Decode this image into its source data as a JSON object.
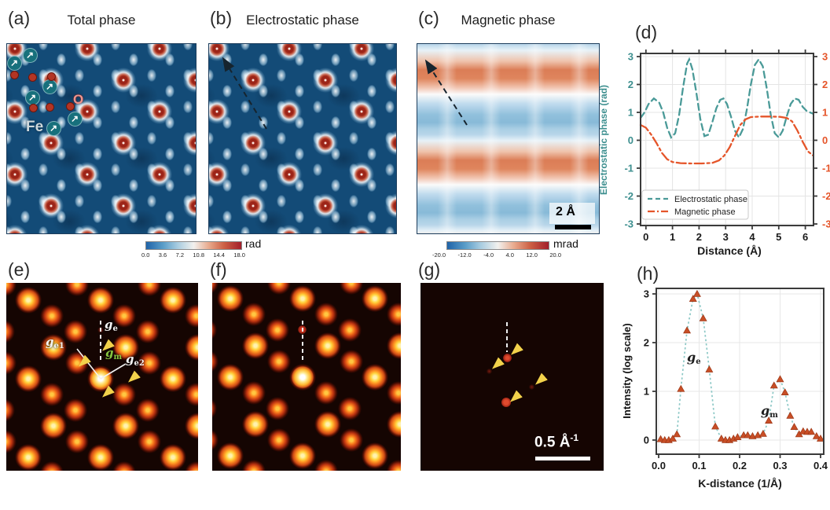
{
  "figure": {
    "panels": {
      "a": {
        "label": "(a)",
        "title": "Total phase",
        "atom_labels": {
          "fe": "Fe",
          "o": "O"
        },
        "fe_atoms": [
          [
            29,
            14
          ],
          [
            9,
            24
          ],
          [
            54,
            54
          ],
          [
            32,
            68
          ],
          [
            86,
            95
          ],
          [
            59,
            107
          ]
        ],
        "o_atoms": [
          [
            9,
            39
          ],
          [
            32,
            42
          ],
          [
            56,
            41
          ],
          [
            33,
            81
          ],
          [
            54,
            80
          ],
          [
            80,
            79
          ]
        ]
      },
      "b": {
        "label": "(b)",
        "title": "Electrostatic phase"
      },
      "c": {
        "label": "(c)",
        "title": "Magnetic phase",
        "scalebar": "2 Å"
      },
      "d": {
        "label": "(d)"
      },
      "e": {
        "label": "(e)",
        "annotations": {
          "ge1": {
            "main": "g",
            "sub": "e1"
          },
          "ge": {
            "main": "g",
            "sub": "e"
          },
          "gm": {
            "main": "g",
            "sub": "m"
          },
          "ge2": {
            "main": "g",
            "sub": "e2"
          }
        }
      },
      "f": {
        "label": "(f)"
      },
      "g": {
        "label": "(g)",
        "scalebar": {
          "main": "0.5 Å",
          "sup": "-1"
        }
      },
      "h": {
        "label": "(h)",
        "annotations": {
          "ge": {
            "main": "g",
            "sub": "e"
          },
          "gm": {
            "main": "g",
            "sub": "m"
          }
        }
      }
    },
    "colorbars": {
      "rad": {
        "unit": "rad",
        "ticks": [
          "0.0",
          "3.6",
          "7.2",
          "10.8",
          "14.4",
          "18.0"
        ]
      },
      "mrad": {
        "unit": "mrad",
        "ticks": [
          "-20.0",
          "-12.0",
          "-4.0",
          "4.0",
          "12.0",
          "20.0"
        ]
      }
    }
  },
  "chart_data": [
    {
      "type": "line",
      "panel": "d",
      "xlabel": "Distance (Å)",
      "ylabel": "Electrostatic phase (rad)",
      "xlim": [
        -0.2,
        6.3
      ],
      "ylim": [
        -3.1,
        3.1
      ],
      "xticks": [
        0,
        1,
        2,
        3,
        4,
        5,
        6
      ],
      "xtick_labels": [
        "0",
        "1",
        "2",
        "3",
        "4",
        "5",
        "6"
      ],
      "yticks": [
        -3,
        -2,
        -1,
        0,
        1,
        2,
        3
      ],
      "ytick_labels": [
        "-3",
        "-2",
        "-1",
        "0",
        "1",
        "2",
        "3"
      ],
      "right_ytick_labels": [
        "-3",
        "-2",
        "-1",
        "0",
        "1",
        "2",
        "3"
      ],
      "grid": true,
      "legend_position": "lower left",
      "legend": [
        "Electrostatic phase",
        "Magnetic phase"
      ],
      "series": [
        {
          "name": "Electrostatic phase",
          "color": "#4a9a98",
          "style": "dashed",
          "points": [
            [
              -0.2,
              0.8
            ],
            [
              -0.05,
              1.0
            ],
            [
              0.1,
              1.3
            ],
            [
              0.3,
              1.5
            ],
            [
              0.5,
              1.35
            ],
            [
              0.65,
              1.0
            ],
            [
              0.8,
              0.45
            ],
            [
              0.95,
              0.1
            ],
            [
              1.1,
              0.25
            ],
            [
              1.25,
              0.9
            ],
            [
              1.4,
              1.9
            ],
            [
              1.55,
              2.75
            ],
            [
              1.63,
              2.9
            ],
            [
              1.75,
              2.55
            ],
            [
              1.9,
              1.7
            ],
            [
              2.05,
              0.75
            ],
            [
              2.2,
              0.15
            ],
            [
              2.35,
              0.2
            ],
            [
              2.5,
              0.65
            ],
            [
              2.65,
              1.15
            ],
            [
              2.8,
              1.45
            ],
            [
              2.92,
              1.5
            ],
            [
              3.05,
              1.3
            ],
            [
              3.2,
              0.85
            ],
            [
              3.35,
              0.35
            ],
            [
              3.5,
              0.1
            ],
            [
              3.65,
              0.4
            ],
            [
              3.8,
              1.1
            ],
            [
              3.95,
              2.0
            ],
            [
              4.1,
              2.7
            ],
            [
              4.25,
              2.9
            ],
            [
              4.4,
              2.65
            ],
            [
              4.55,
              1.85
            ],
            [
              4.7,
              0.9
            ],
            [
              4.85,
              0.25
            ],
            [
              5.0,
              0.1
            ],
            [
              5.15,
              0.35
            ],
            [
              5.3,
              0.85
            ],
            [
              5.45,
              1.3
            ],
            [
              5.6,
              1.5
            ],
            [
              5.75,
              1.45
            ],
            [
              5.9,
              1.2
            ],
            [
              6.05,
              1.05
            ],
            [
              6.3,
              0.95
            ]
          ]
        },
        {
          "name": "Magnetic phase",
          "color": "#e5552a",
          "style": "dashdot",
          "points": [
            [
              -0.2,
              0.55
            ],
            [
              0.0,
              0.45
            ],
            [
              0.2,
              0.2
            ],
            [
              0.4,
              -0.1
            ],
            [
              0.6,
              -0.45
            ],
            [
              0.8,
              -0.68
            ],
            [
              1.0,
              -0.78
            ],
            [
              1.3,
              -0.82
            ],
            [
              1.7,
              -0.83
            ],
            [
              2.1,
              -0.83
            ],
            [
              2.5,
              -0.81
            ],
            [
              2.75,
              -0.72
            ],
            [
              2.95,
              -0.55
            ],
            [
              3.15,
              -0.25
            ],
            [
              3.35,
              0.15
            ],
            [
              3.55,
              0.55
            ],
            [
              3.75,
              0.75
            ],
            [
              3.95,
              0.83
            ],
            [
              4.3,
              0.85
            ],
            [
              4.7,
              0.85
            ],
            [
              5.05,
              0.84
            ],
            [
              5.3,
              0.8
            ],
            [
              5.5,
              0.68
            ],
            [
              5.7,
              0.35
            ],
            [
              5.9,
              -0.05
            ],
            [
              6.1,
              -0.4
            ],
            [
              6.3,
              -0.55
            ]
          ]
        }
      ]
    },
    {
      "type": "line",
      "panel": "h",
      "xlabel": "K-distance (1/Å)",
      "ylabel": "Intensity (log scale)",
      "xlim": [
        -0.015,
        0.415
      ],
      "ylim": [
        -0.29,
        3.4
      ],
      "xticks": [
        0,
        0.1,
        0.2,
        0.3,
        0.4
      ],
      "xtick_labels": [
        "0.0",
        "0.1",
        "0.2",
        "0.3",
        "0.4"
      ],
      "yticks": [
        0,
        1,
        2,
        3
      ],
      "ytick_labels": [
        "0",
        "1",
        "2",
        "3"
      ],
      "grid": true,
      "peaks": [
        {
          "label": "ge",
          "x": 0.095,
          "intensity": 3.0
        },
        {
          "label": "gm",
          "x": 0.3,
          "intensity": 1.25
        }
      ],
      "series": [
        {
          "name": "Intensity",
          "line_color": "#8cc8c6",
          "marker": "triangle",
          "marker_color": "#c84e26",
          "style": "dotted",
          "points": [
            [
              0.005,
              0.02
            ],
            [
              0.015,
              0.0
            ],
            [
              0.025,
              0.0
            ],
            [
              0.035,
              0.03
            ],
            [
              0.045,
              0.12
            ],
            [
              0.055,
              1.05
            ],
            [
              0.07,
              2.25
            ],
            [
              0.085,
              2.9
            ],
            [
              0.095,
              3.0
            ],
            [
              0.11,
              2.5
            ],
            [
              0.125,
              1.45
            ],
            [
              0.14,
              0.28
            ],
            [
              0.155,
              0.03
            ],
            [
              0.165,
              0.0
            ],
            [
              0.175,
              0.0
            ],
            [
              0.185,
              0.03
            ],
            [
              0.195,
              0.06
            ],
            [
              0.21,
              0.1
            ],
            [
              0.22,
              0.1
            ],
            [
              0.232,
              0.08
            ],
            [
              0.245,
              0.1
            ],
            [
              0.258,
              0.13
            ],
            [
              0.272,
              0.4
            ],
            [
              0.285,
              1.12
            ],
            [
              0.3,
              1.25
            ],
            [
              0.312,
              0.98
            ],
            [
              0.325,
              0.5
            ],
            [
              0.335,
              0.27
            ],
            [
              0.347,
              0.12
            ],
            [
              0.357,
              0.18
            ],
            [
              0.367,
              0.17
            ],
            [
              0.377,
              0.17
            ],
            [
              0.39,
              0.08
            ],
            [
              0.4,
              0.03
            ]
          ]
        }
      ]
    }
  ]
}
